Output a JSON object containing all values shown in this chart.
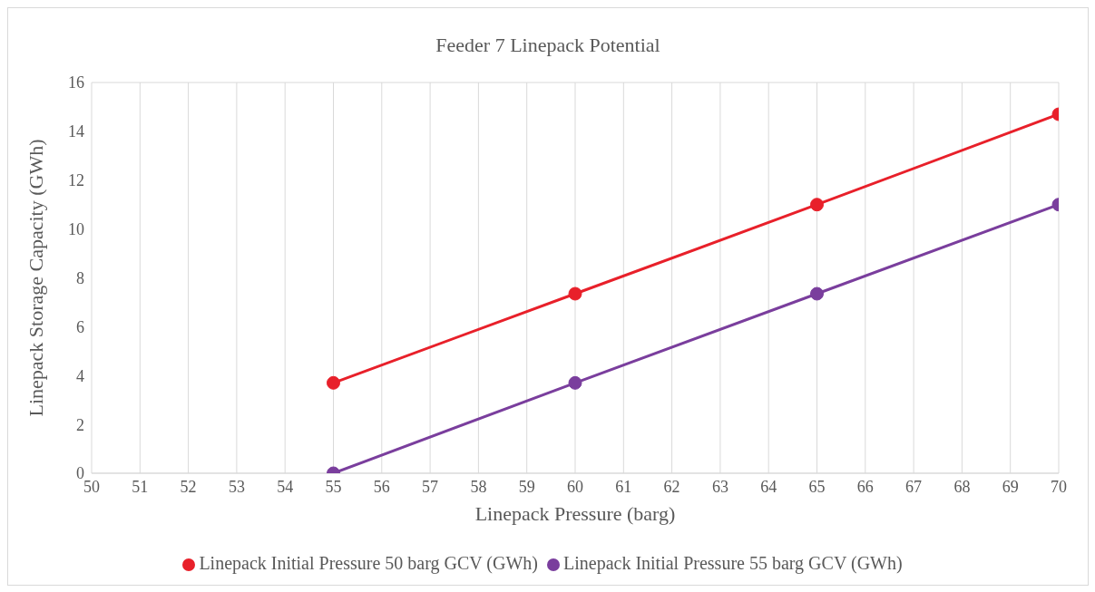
{
  "chart_data": {
    "type": "line",
    "title": "Feeder 7 Linepack Potential",
    "xlabel": "Linepack Pressure (barg)",
    "ylabel": "Linepack Storage Capacity (GWh)",
    "x": [
      55,
      60,
      65,
      70
    ],
    "series": [
      {
        "name": "Linepack Initial Pressure 50 barg GCV (GWh)",
        "color": "#e8202a",
        "values": [
          3.7,
          7.35,
          11.0,
          14.7
        ]
      },
      {
        "name": "Linepack Initial Pressure 55 barg GCV (GWh)",
        "color": "#7a3e9d",
        "values": [
          0,
          3.7,
          7.35,
          11.0
        ]
      }
    ],
    "xlim": [
      50,
      70
    ],
    "xticks": [
      50,
      51,
      52,
      53,
      54,
      55,
      56,
      57,
      58,
      59,
      60,
      61,
      62,
      63,
      64,
      65,
      66,
      67,
      68,
      69,
      70
    ],
    "ylim": [
      0,
      16
    ],
    "yticks": [
      0,
      2,
      4,
      6,
      8,
      10,
      12,
      14,
      16
    ],
    "grid": true,
    "legend": "bottom",
    "marker": "circle",
    "line_style": "solid"
  }
}
